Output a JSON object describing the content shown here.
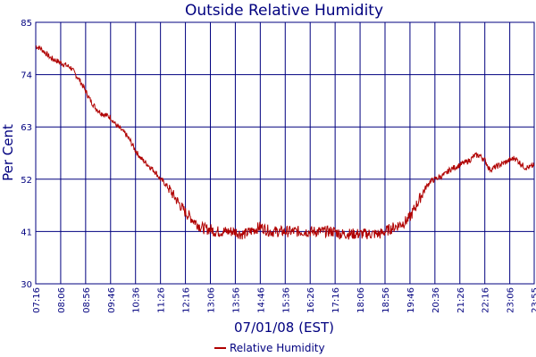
{
  "chart_data": {
    "type": "line",
    "title": "Outside Relative Humidity",
    "xlabel": "07/01/08 (EST)",
    "ylabel": "Per Cent",
    "ylim": [
      30,
      85
    ],
    "yticks": [
      30,
      41,
      52,
      63,
      74,
      85
    ],
    "xlim": [
      "07:16",
      "23:55"
    ],
    "xticks": [
      "07:16",
      "08:06",
      "08:56",
      "09:46",
      "10:36",
      "11:26",
      "12:16",
      "13:06",
      "13:56",
      "14:46",
      "15:36",
      "16:26",
      "17:16",
      "18:06",
      "18:56",
      "19:46",
      "20:36",
      "21:26",
      "22:16",
      "23:06",
      "23:55"
    ],
    "grid": true,
    "legend": "bottom-center",
    "series": [
      {
        "name": "Relative Humidity",
        "color": "#b00000",
        "x": [
          "07:16",
          "07:26",
          "07:36",
          "07:46",
          "07:56",
          "08:06",
          "08:16",
          "08:26",
          "08:36",
          "08:46",
          "08:56",
          "09:06",
          "09:16",
          "09:26",
          "09:36",
          "09:46",
          "09:56",
          "10:06",
          "10:16",
          "10:26",
          "10:36",
          "10:46",
          "10:56",
          "11:06",
          "11:16",
          "11:26",
          "11:36",
          "11:46",
          "11:56",
          "12:06",
          "12:16",
          "12:26",
          "12:36",
          "12:46",
          "12:56",
          "13:06",
          "13:16",
          "13:26",
          "13:36",
          "13:46",
          "13:56",
          "14:06",
          "14:16",
          "14:26",
          "14:36",
          "14:46",
          "14:56",
          "15:06",
          "15:16",
          "15:26",
          "15:36",
          "15:46",
          "15:56",
          "16:06",
          "16:16",
          "16:26",
          "16:36",
          "16:46",
          "16:56",
          "17:06",
          "17:16",
          "17:26",
          "17:36",
          "17:46",
          "17:56",
          "18:06",
          "18:16",
          "18:26",
          "18:36",
          "18:46",
          "18:56",
          "19:06",
          "19:16",
          "19:26",
          "19:36",
          "19:46",
          "19:56",
          "20:06",
          "20:16",
          "20:26",
          "20:36",
          "20:46",
          "20:56",
          "21:06",
          "21:16",
          "21:26",
          "21:36",
          "21:46",
          "21:56",
          "22:06",
          "22:16",
          "22:26",
          "22:36",
          "22:46",
          "22:56",
          "23:06",
          "23:16",
          "23:26",
          "23:36",
          "23:46",
          "23:55"
        ],
        "y": [
          80,
          79.5,
          78.5,
          77.5,
          77,
          76.5,
          76,
          75.5,
          74,
          72.5,
          70.5,
          68.5,
          67,
          66,
          65.5,
          65,
          63.5,
          62.5,
          61.5,
          60,
          58,
          56.5,
          55.5,
          54.5,
          53.5,
          52,
          51,
          49.5,
          48,
          46.5,
          45,
          44,
          43,
          42,
          41.5,
          41.5,
          41,
          41,
          41,
          41,
          41,
          40.5,
          40.5,
          41,
          41.5,
          42,
          41.5,
          41,
          41,
          41,
          41,
          41,
          41,
          41,
          41,
          41,
          41,
          41,
          41,
          41,
          41,
          40.5,
          40.5,
          40.5,
          40.5,
          40.5,
          40.5,
          40.5,
          40.5,
          40.5,
          41,
          41.5,
          42,
          42.5,
          43,
          44,
          46,
          48,
          50,
          51.5,
          52,
          52.5,
          53,
          54,
          54.5,
          55,
          55.5,
          56,
          57,
          57,
          56,
          54,
          54.5,
          55,
          55.5,
          56,
          56.5,
          55.5,
          54.5,
          54.5,
          55
        ]
      }
    ]
  }
}
